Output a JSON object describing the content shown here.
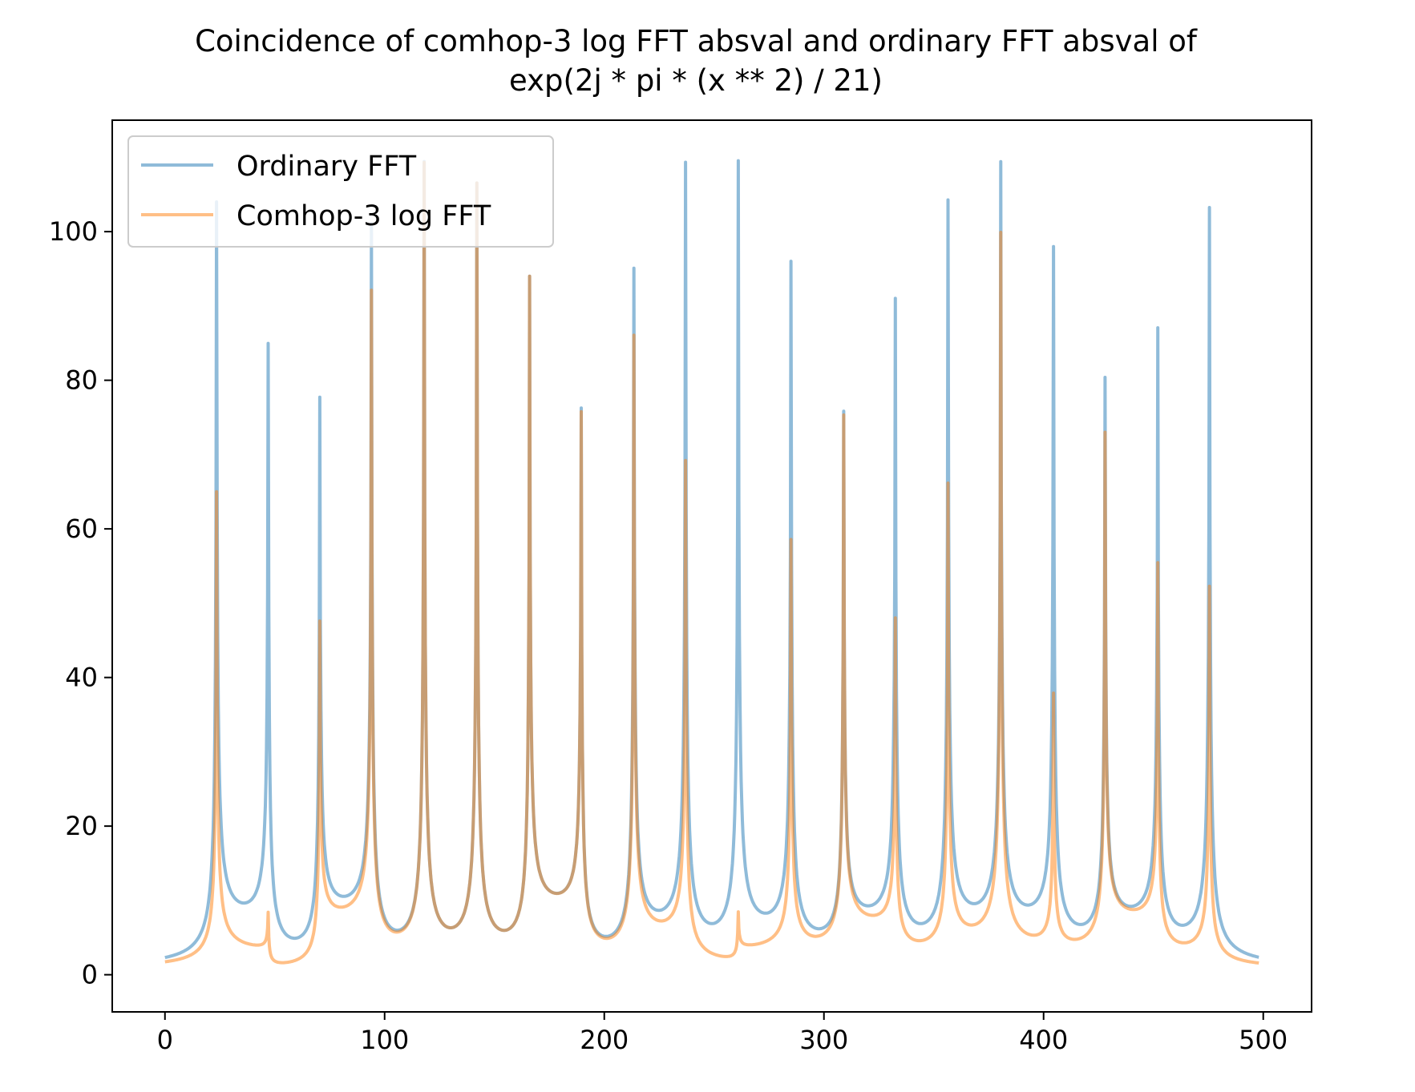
{
  "chart_data": {
    "type": "line",
    "title_line1": "Coincidence of comhop-3 log FFT absval and ordinary FFT absval of",
    "title_line2": "exp(2j * pi * (x ** 2) / 21)",
    "xlabel": "",
    "ylabel": "",
    "xlim": [
      -24,
      522
    ],
    "ylim": [
      -5,
      115
    ],
    "x_ticks": [
      0,
      100,
      200,
      300,
      400,
      500
    ],
    "y_ticks": [
      0,
      20,
      40,
      60,
      80,
      100
    ],
    "grid": false,
    "legend_position": "top-left",
    "series": [
      {
        "name": "Ordinary FFT",
        "color": "#1f77b4",
        "baseline_left": 0.8,
        "baseline_right": 0.8,
        "peaks": [
          {
            "x": 23.5,
            "height": 104,
            "valley_right": 4.5
          },
          {
            "x": 47,
            "height": 83.5,
            "valley_right": 0.3
          },
          {
            "x": 70.5,
            "height": 76.5,
            "valley_right": 5.8
          },
          {
            "x": 94,
            "height": 100,
            "valley_right": 0.1
          },
          {
            "x": 118,
            "height": 108,
            "valley_right": 0.3
          },
          {
            "x": 142,
            "height": 105,
            "valley_right": 0.4
          },
          {
            "x": 166,
            "height": 92.5,
            "valley_right": 6.5
          },
          {
            "x": 189.5,
            "height": 75,
            "valley_right": 0.4
          },
          {
            "x": 213.5,
            "height": 94,
            "valley_right": 3.0
          },
          {
            "x": 237,
            "height": 108,
            "valley_right": 0.8
          },
          {
            "x": 261,
            "height": 108,
            "valley_right": 2.7
          },
          {
            "x": 285,
            "height": 94.5,
            "valley_right": 1.5
          },
          {
            "x": 309,
            "height": 74.5,
            "valley_right": 4.8
          },
          {
            "x": 332.5,
            "height": 90,
            "valley_right": 1.5
          },
          {
            "x": 356.5,
            "height": 103,
            "valley_right": 3.8
          },
          {
            "x": 380.5,
            "height": 108,
            "valley_right": 3.8
          },
          {
            "x": 404.5,
            "height": 96.5,
            "valley_right": 1.8
          },
          {
            "x": 428,
            "height": 79,
            "valley_right": 4.8
          },
          {
            "x": 452,
            "height": 86,
            "valley_right": 1.3
          },
          {
            "x": 475.5,
            "height": 102,
            "valley_right": 0.8
          }
        ]
      },
      {
        "name": "Comhop-3 log FFT",
        "color": "#ff7f0e",
        "baseline_left": 0.8,
        "baseline_right": 0.8,
        "peaks": [
          {
            "x": 23.5,
            "height": 65,
            "valley_right": 2.5
          },
          {
            "x": 47,
            "height": 7.5,
            "valley_right": 0.3
          },
          {
            "x": 70.5,
            "height": 47.5,
            "valley_right": 5.5
          },
          {
            "x": 94,
            "height": 91.5,
            "valley_right": 0.1
          },
          {
            "x": 118,
            "height": 108,
            "valley_right": 0.3
          },
          {
            "x": 142,
            "height": 105,
            "valley_right": 0.4
          },
          {
            "x": 166,
            "height": 92.5,
            "valley_right": 6.5
          },
          {
            "x": 189.5,
            "height": 74.5,
            "valley_right": 0.4
          },
          {
            "x": 213.5,
            "height": 85,
            "valley_right": 3.0
          },
          {
            "x": 237,
            "height": 68,
            "valley_right": 0.8
          },
          {
            "x": 261,
            "height": 7.5,
            "valley_right": 2.7
          },
          {
            "x": 285,
            "height": 58.5,
            "valley_right": 1.5
          },
          {
            "x": 309,
            "height": 74.5,
            "valley_right": 4.8
          },
          {
            "x": 332.5,
            "height": 47,
            "valley_right": 1.5
          },
          {
            "x": 356.5,
            "height": 65.5,
            "valley_right": 2.2
          },
          {
            "x": 380.5,
            "height": 99,
            "valley_right": 1.8
          },
          {
            "x": 404.5,
            "height": 36.5,
            "valley_right": 1.8
          },
          {
            "x": 428,
            "height": 72.5,
            "valley_right": 5.5
          },
          {
            "x": 452,
            "height": 54.5,
            "valley_right": 1.3
          },
          {
            "x": 475.5,
            "height": 51.5,
            "valley_right": 0.8
          }
        ]
      }
    ]
  }
}
